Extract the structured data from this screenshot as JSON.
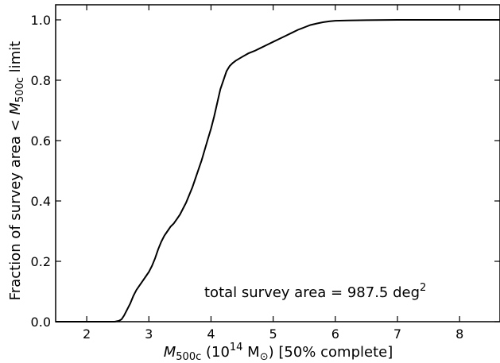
{
  "chart_data": {
    "type": "line",
    "xlabel": {
      "symbol": "M",
      "sub": "500c",
      "pre_exp": " (10",
      "exp": "14",
      "unit": " M",
      "sun": "⊙",
      "post": ") [50% complete]"
    },
    "ylabel": {
      "pre": "Fraction of survey area < ",
      "symbol": "M",
      "sub": "500c",
      "post": " limit"
    },
    "annotation": {
      "text": "total survey area = 987.5 deg",
      "sup": "2"
    },
    "xlim": [
      1.5,
      8.65
    ],
    "ylim": [
      0.0,
      1.05
    ],
    "xticks": [
      2,
      3,
      4,
      5,
      6,
      7,
      8
    ],
    "xtick_labels": [
      "2",
      "3",
      "4",
      "5",
      "6",
      "7",
      "8"
    ],
    "yticks": [
      0.0,
      0.2,
      0.4,
      0.6,
      0.8,
      1.0
    ],
    "ytick_labels": [
      "0.0",
      "0.2",
      "0.4",
      "0.6",
      "0.8",
      "1.0"
    ],
    "grid": false,
    "line_color": "#000000",
    "series": [
      {
        "x": [
          1.5,
          2.45,
          2.52,
          2.56,
          2.6,
          2.65,
          2.7,
          2.75,
          2.8,
          2.85,
          2.9,
          2.95,
          3.0,
          3.05,
          3.1,
          3.15,
          3.2,
          3.25,
          3.3,
          3.35,
          3.4,
          3.45,
          3.5,
          3.55,
          3.6,
          3.65,
          3.7,
          3.75,
          3.8,
          3.85,
          3.9,
          3.95,
          4.0,
          4.05,
          4.1,
          4.15,
          4.2,
          4.25,
          4.3,
          4.35,
          4.4,
          4.5,
          4.6,
          4.7,
          4.8,
          4.9,
          5.0,
          5.1,
          5.2,
          5.3,
          5.4,
          5.5,
          5.6,
          5.7,
          5.8,
          5.9,
          6.0,
          6.2,
          6.5,
          7.0,
          7.5,
          8.0,
          8.65
        ],
        "y": [
          0.0,
          0.0,
          0.003,
          0.008,
          0.02,
          0.04,
          0.06,
          0.085,
          0.105,
          0.12,
          0.135,
          0.15,
          0.165,
          0.185,
          0.21,
          0.24,
          0.265,
          0.285,
          0.3,
          0.315,
          0.325,
          0.34,
          0.355,
          0.375,
          0.395,
          0.42,
          0.445,
          0.475,
          0.505,
          0.535,
          0.57,
          0.605,
          0.64,
          0.68,
          0.725,
          0.77,
          0.8,
          0.83,
          0.847,
          0.857,
          0.865,
          0.877,
          0.889,
          0.897,
          0.907,
          0.917,
          0.927,
          0.937,
          0.947,
          0.957,
          0.967,
          0.975,
          0.983,
          0.988,
          0.992,
          0.995,
          0.997,
          0.998,
          0.999,
          1.0,
          1.0,
          1.0,
          1.0
        ]
      }
    ]
  }
}
